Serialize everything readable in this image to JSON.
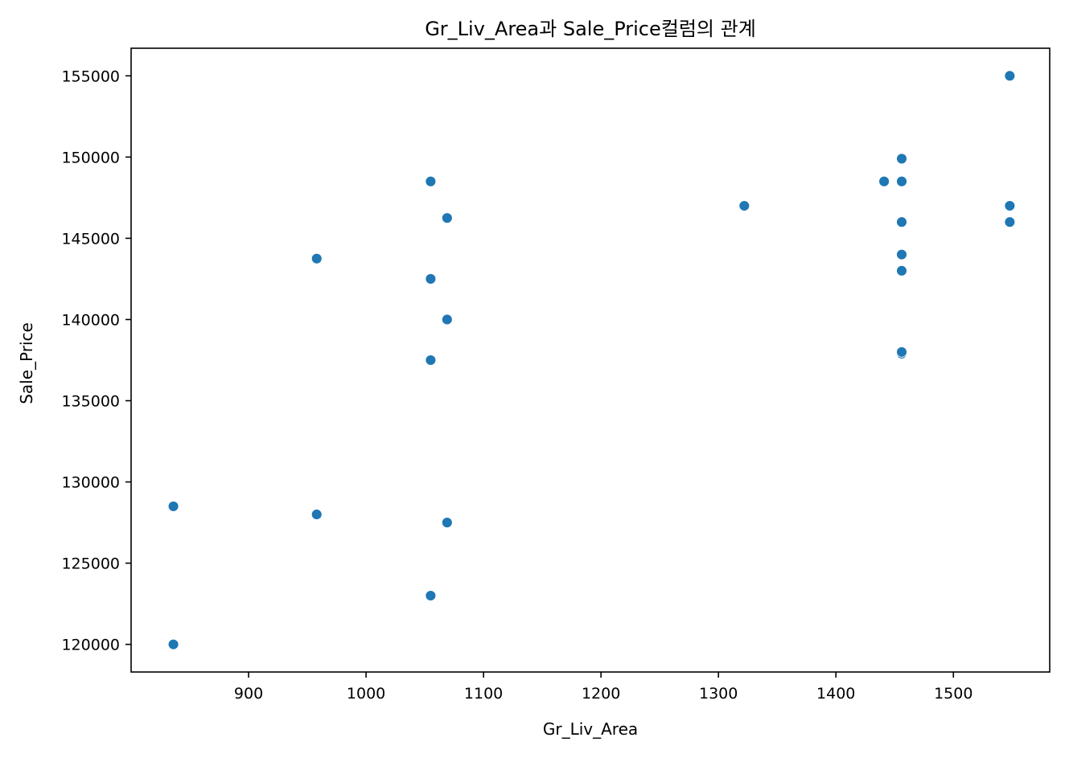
{
  "chart_data": {
    "type": "scatter",
    "title": "Gr_Liv_Area과 Sale_Price컬럼의 관계",
    "xlabel": "Gr_Liv_Area",
    "ylabel": "Sale_Price",
    "xlim": [
      800,
      1582
    ],
    "ylim": [
      118300,
      156700
    ],
    "xticks": [
      900,
      1000,
      1100,
      1200,
      1300,
      1400,
      1500
    ],
    "yticks": [
      120000,
      125000,
      130000,
      135000,
      140000,
      145000,
      150000,
      155000
    ],
    "grid": false,
    "legend": "none",
    "marker_color": "#1f77b4",
    "points": [
      {
        "x": 836,
        "y": 128500
      },
      {
        "x": 836,
        "y": 120000
      },
      {
        "x": 958,
        "y": 143750
      },
      {
        "x": 958,
        "y": 128000
      },
      {
        "x": 1055,
        "y": 148500
      },
      {
        "x": 1055,
        "y": 142500
      },
      {
        "x": 1055,
        "y": 137500
      },
      {
        "x": 1055,
        "y": 123000
      },
      {
        "x": 1069,
        "y": 146250
      },
      {
        "x": 1069,
        "y": 140000
      },
      {
        "x": 1069,
        "y": 127500
      },
      {
        "x": 1322,
        "y": 147000
      },
      {
        "x": 1441,
        "y": 148500
      },
      {
        "x": 1456,
        "y": 149900
      },
      {
        "x": 1456,
        "y": 148500
      },
      {
        "x": 1456,
        "y": 146000
      },
      {
        "x": 1456,
        "y": 144000
      },
      {
        "x": 1456,
        "y": 143000
      },
      {
        "x": 1456,
        "y": 137900
      },
      {
        "x": 1456,
        "y": 138000
      },
      {
        "x": 1548,
        "y": 155000
      },
      {
        "x": 1548,
        "y": 147000
      },
      {
        "x": 1548,
        "y": 146000
      }
    ]
  }
}
